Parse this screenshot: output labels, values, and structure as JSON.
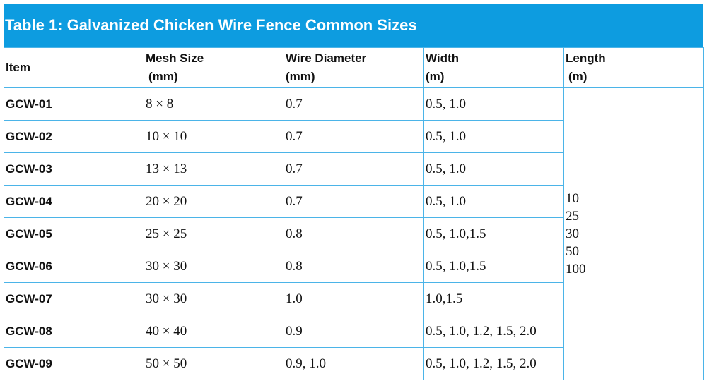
{
  "title": "Table 1: Galvanized Chicken Wire Fence Common Sizes",
  "headers": [
    {
      "line1": "Item",
      "line2": ""
    },
    {
      "line1": "Mesh Size",
      "line2": "(mm)"
    },
    {
      "line1": "Wire Diameter",
      "line2": "(mm)"
    },
    {
      "line1": "Width",
      "line2": "(m)"
    },
    {
      "line1": "Length",
      "line2": "(m)"
    }
  ],
  "rows": [
    {
      "item": "GCW-01",
      "mesh": "8 × 8",
      "wire": "0.7",
      "width": "0.5, 1.0"
    },
    {
      "item": "GCW-02",
      "mesh": "10 × 10",
      "wire": "0.7",
      "width": "0.5, 1.0"
    },
    {
      "item": "GCW-03",
      "mesh": "13 × 13",
      "wire": "0.7",
      "width": "0.5, 1.0"
    },
    {
      "item": "GCW-04",
      "mesh": "20 × 20",
      "wire": "0.7",
      "width": "0.5, 1.0"
    },
    {
      "item": "GCW-05",
      "mesh": "25 × 25",
      "wire": "0.8",
      "width": "0.5, 1.0,1.5"
    },
    {
      "item": "GCW-06",
      "mesh": "30 × 30",
      "wire": "0.8",
      "width": "0.5, 1.0,1.5"
    },
    {
      "item": "GCW-07",
      "mesh": "30 × 30",
      "wire": "1.0",
      "width": "1.0,1.5"
    },
    {
      "item": "GCW-08",
      "mesh": "40 × 40",
      "wire": "0.9",
      "width": "0.5, 1.0, 1.2, 1.5, 2.0"
    },
    {
      "item": "GCW-09",
      "mesh": "50 × 50",
      "wire": "0.9, 1.0",
      "width": "0.5, 1.0, 1.2, 1.5, 2.0"
    }
  ],
  "lengths": [
    "10",
    "25",
    "30",
    "50",
    "100"
  ],
  "colors": {
    "title_bg": "#0d9ce0",
    "border": "#4bb4e8"
  }
}
